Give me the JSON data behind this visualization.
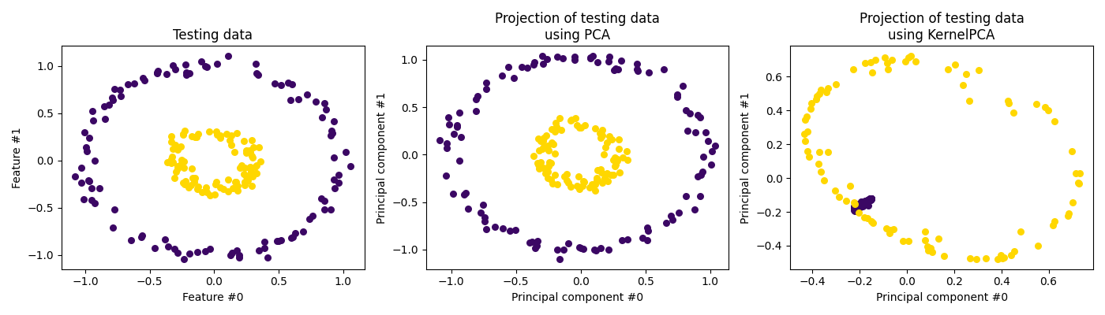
{
  "title1": "Testing data",
  "title2": "Projection of testing data\nusing PCA",
  "title3": "Projection of testing data\nusing KernelPCA",
  "xlabel1": "Feature #0",
  "ylabel1": "Feature #1",
  "xlabel2": "Principal component #0",
  "ylabel2": "Principal component #1",
  "xlabel3": "Principal component #0",
  "ylabel3": "Principal component #1",
  "color_outer": "#3b0764",
  "color_inner": "#ffd700",
  "random_state": 0,
  "n_samples": 400,
  "noise": 0.05,
  "factor": 0.3,
  "marker_size": 30,
  "figsize": [
    14,
    4
  ],
  "gamma": 10
}
